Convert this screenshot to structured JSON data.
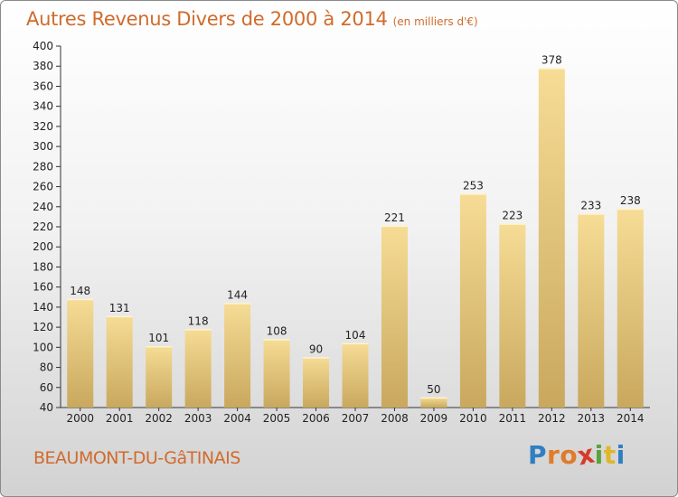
{
  "header": {
    "title": "Autres Revenus Divers de 2000 à 2014",
    "subtitle": "(en milliers d'€)"
  },
  "footer": {
    "commune": "BEAUMONT-DU-GâTINAIS",
    "logo_letters": [
      "P",
      "r",
      "o",
      "x",
      "i",
      "t",
      "i"
    ]
  },
  "colors": {
    "title": "#d06b2c",
    "bar_light": "#f6dc95",
    "bar_dark": "#c9a85e",
    "logo": [
      "#2f7fc1",
      "#e07b2a",
      "#e07b2a",
      "#d63b2a",
      "#5aa33a",
      "#e0b62a",
      "#2f7fc1"
    ]
  },
  "chart_data": {
    "type": "bar",
    "title": "Autres Revenus Divers de 2000 à 2014",
    "categories": [
      "2000",
      "2001",
      "2002",
      "2003",
      "2004",
      "2005",
      "2006",
      "2007",
      "2008",
      "2009",
      "2010",
      "2011",
      "2012",
      "2013",
      "2014"
    ],
    "values": [
      148,
      131,
      101,
      118,
      144,
      108,
      90,
      104,
      221,
      50,
      253,
      223,
      378,
      233,
      238
    ],
    "ylim": [
      40,
      400
    ],
    "ytick_step": 20,
    "grid": false,
    "legend": "none"
  }
}
